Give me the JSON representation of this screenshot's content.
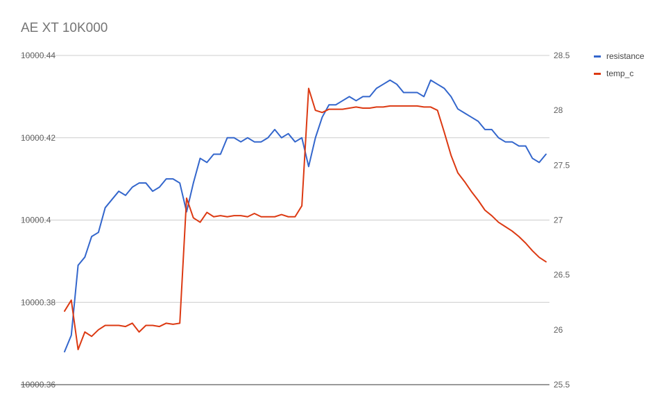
{
  "chart_data": {
    "type": "line",
    "title": "AE XT 10K000",
    "grid": true,
    "legend_position": "right",
    "y_left": {
      "ylim": [
        10000.36,
        10000.44
      ],
      "ticks": [
        10000.36,
        10000.38,
        10000.4,
        10000.42,
        10000.44
      ],
      "tick_labels": [
        "10000.36",
        "10000.38",
        "10000.4",
        "10000.42",
        "10000.44"
      ]
    },
    "y_right": {
      "ylim": [
        25.5,
        28.5
      ],
      "ticks": [
        25.5,
        26,
        26.5,
        27,
        27.5,
        28,
        28.5
      ],
      "tick_labels": [
        "25.5",
        "26",
        "26.5",
        "27",
        "27.5",
        "28",
        "28.5"
      ]
    },
    "series": [
      {
        "name": "resistance",
        "axis": "left",
        "color": "#3366cc",
        "values": [
          10000.368,
          10000.372,
          10000.389,
          10000.391,
          10000.396,
          10000.397,
          10000.403,
          10000.405,
          10000.407,
          10000.406,
          10000.408,
          10000.409,
          10000.409,
          10000.407,
          10000.408,
          10000.41,
          10000.41,
          10000.409,
          10000.402,
          10000.409,
          10000.415,
          10000.414,
          10000.416,
          10000.416,
          10000.42,
          10000.42,
          10000.419,
          10000.42,
          10000.419,
          10000.419,
          10000.42,
          10000.422,
          10000.42,
          10000.421,
          10000.419,
          10000.42,
          10000.413,
          10000.42,
          10000.425,
          10000.428,
          10000.428,
          10000.429,
          10000.43,
          10000.429,
          10000.43,
          10000.43,
          10000.432,
          10000.433,
          10000.434,
          10000.433,
          10000.431,
          10000.431,
          10000.431,
          10000.43,
          10000.434,
          10000.433,
          10000.432,
          10000.43,
          10000.427,
          10000.426,
          10000.425,
          10000.424,
          10000.422,
          10000.422,
          10000.42,
          10000.419,
          10000.419,
          10000.418,
          10000.418,
          10000.415,
          10000.414,
          10000.416
        ]
      },
      {
        "name": "temp_c",
        "axis": "right",
        "color": "#dc3912",
        "values": [
          26.17,
          26.27,
          25.82,
          25.98,
          25.94,
          26.0,
          26.04,
          26.04,
          26.04,
          26.03,
          26.06,
          25.98,
          26.04,
          26.04,
          26.03,
          26.06,
          26.05,
          26.06,
          27.2,
          27.02,
          26.98,
          27.07,
          27.03,
          27.04,
          27.03,
          27.04,
          27.04,
          27.03,
          27.06,
          27.03,
          27.03,
          27.03,
          27.05,
          27.03,
          27.03,
          27.13,
          28.2,
          28.0,
          27.98,
          28.01,
          28.01,
          28.01,
          28.02,
          28.03,
          28.02,
          28.02,
          28.03,
          28.03,
          28.04,
          28.04,
          28.04,
          28.04,
          28.04,
          28.03,
          28.03,
          28.0,
          27.8,
          27.59,
          27.43,
          27.35,
          27.26,
          27.18,
          27.09,
          27.04,
          26.98,
          26.94,
          26.9,
          26.85,
          26.79,
          26.72,
          26.66,
          26.62
        ]
      }
    ]
  }
}
